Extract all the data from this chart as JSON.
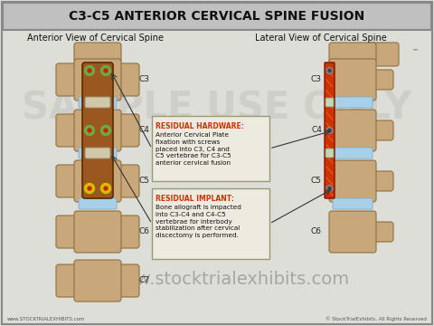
{
  "title": "C3-C5 ANTERIOR CERVICAL SPINE FUSION",
  "title_bg": "#c0c0c0",
  "title_border": "#888888",
  "bg_color": "#deded8",
  "watermark": "SAMPLE USE ONLY",
  "left_view_label": "Anterior View of Cervical Spine",
  "right_view_label": "Lateral View of Cervical Spine",
  "footer_left": "www.STOCKTRIALEXHIBITS.com",
  "footer_right": "© StockTrialExhibits. All Rights Reserved",
  "website": "© www.stocktrialexhibits.com",
  "box1_title": "RESIDUAL HARDWARE:",
  "box1_text": "Anterior Cervical Plate\nfixation with screws\nplaced into C3, C4 and\nC5 vertebrae for C3-C5\nanterior cervical fusion",
  "box2_title": "RESIDUAL IMPLANT:",
  "box2_text": "Bone allograft is impacted\ninto C3-C4 and C4-C5\nvertebrae for interbody\nstabilization after cervical\ndiscectomy is performed.",
  "screw_green": "#6aaa44",
  "screw_yellow": "#d4c000",
  "screw_red": "#cc2200",
  "bone_light": "#c8a87a",
  "bone_mid": "#b09060",
  "bone_dark": "#907040",
  "disc_color": "#a8d0e8",
  "box_bg": "#edeae0",
  "box_border": "#999977",
  "red_plate_color": "#cc3300"
}
